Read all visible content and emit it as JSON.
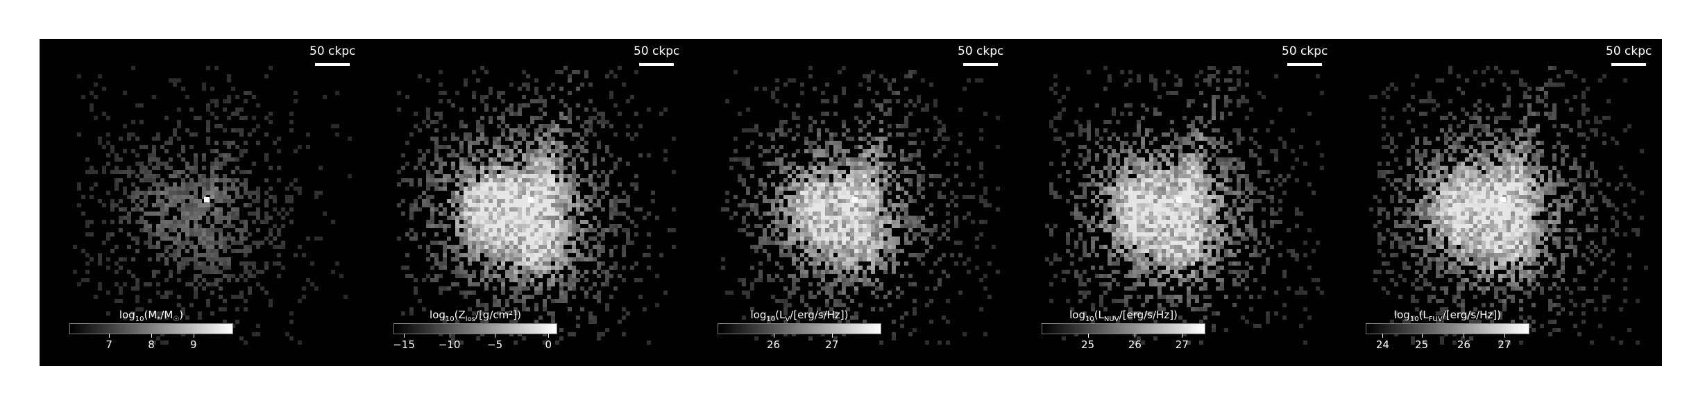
{
  "figure": {
    "scale_bar_label": "50 ckpc",
    "panels": [
      {
        "id": "stellar-mass",
        "cbar_label": "log10(M*/M☉)",
        "ticks": [
          "7",
          "8",
          "9"
        ],
        "tick_pos": [
          0.24,
          0.5,
          0.76
        ],
        "peak": 1.0,
        "spread": 0.55,
        "seed": 3
      },
      {
        "id": "metallicity",
        "cbar_label": "log10(Z_los/[g/cm²])",
        "ticks": [
          "−15",
          "−10",
          "−5",
          "0"
        ],
        "tick_pos": [
          0.06,
          0.34,
          0.62,
          0.95
        ],
        "peak": 0.85,
        "spread": 1.0,
        "seed": 7
      },
      {
        "id": "luminosity-v",
        "cbar_label": "log10(L_V/[erg/s/Hz])",
        "ticks": [
          "26",
          "27"
        ],
        "tick_pos": [
          0.34,
          0.7
        ],
        "peak": 0.95,
        "spread": 0.85,
        "seed": 11
      },
      {
        "id": "luminosity-nuv",
        "cbar_label": "log10(L_NUV/[erg/s/Hz])",
        "ticks": [
          "25",
          "26",
          "27"
        ],
        "tick_pos": [
          0.28,
          0.57,
          0.86
        ],
        "peak": 0.9,
        "spread": 0.95,
        "seed": 13
      },
      {
        "id": "luminosity-fuv",
        "cbar_label": "log10(L_FUV/[erg/s/Hz])",
        "ticks": [
          "24",
          "25",
          "26",
          "27"
        ],
        "tick_pos": [
          0.1,
          0.34,
          0.6,
          0.85
        ],
        "peak": 0.9,
        "spread": 0.95,
        "seed": 17
      }
    ]
  },
  "colors": {
    "background": "#000000",
    "foreground": "#ffffff"
  }
}
